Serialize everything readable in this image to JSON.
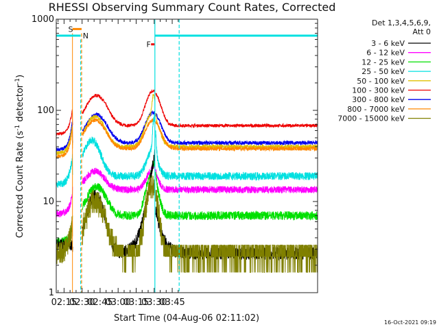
{
  "chart_data": {
    "type": "line",
    "title": "RHESSI Observing Summary Count Rates, Corrected",
    "xlabel": "Start Time (04-Aug-06 02:11:02)",
    "ylabel": "Corrected Count Rate (s",
    "ylabel_sup1": "-1",
    "ylabel_mid": " detector",
    "ylabel_sup2": "-1",
    "ylabel_end": ")",
    "y_scale": "log",
    "ylim": [
      1,
      1000
    ],
    "xlim_min": [
      8.5,
      226
    ],
    "y_ticks": [
      {
        "value": 1,
        "label": "1"
      },
      {
        "value": 10,
        "label": "10"
      },
      {
        "value": 100,
        "label": "100"
      },
      {
        "value": 1000,
        "label": "1000"
      }
    ],
    "x_ticks": [
      {
        "value": 15,
        "label": "02:15"
      },
      {
        "value": 30,
        "label": "02:30"
      },
      {
        "value": 45,
        "label": "02:45"
      },
      {
        "value": 60,
        "label": "03:00"
      },
      {
        "value": 75,
        "label": "03:15"
      },
      {
        "value": 90,
        "label": "03:30"
      },
      {
        "value": 105,
        "label": "03:45"
      }
    ],
    "legend": {
      "placement": "right",
      "header_lines": [
        "Det 1,3,4,5,6,9,",
        "Att 0"
      ]
    },
    "series": [
      {
        "name": "3 - 6 keV",
        "color": "#000000"
      },
      {
        "name": "6 - 12 keV",
        "color": "#ff00ff"
      },
      {
        "name": "12 - 25 keV",
        "color": "#00e000"
      },
      {
        "name": "25 - 50 keV",
        "color": "#00e0e0"
      },
      {
        "name": "50 - 100 keV",
        "color": "#e0c000"
      },
      {
        "name": "100 - 300 keV",
        "color": "#ee0000"
      },
      {
        "name": "300 - 800 keV",
        "color": "#0000ee"
      },
      {
        "name": "800 - 7000 keV",
        "color": "#ff8800"
      },
      {
        "name": "7000 - 15000 keV",
        "color": "#808000"
      }
    ],
    "annotations": [
      {
        "label": "S",
        "color": "#ff8800"
      },
      {
        "label": "N",
        "color": "#00e0e0"
      },
      {
        "label": "F",
        "color": "#ee0000"
      }
    ]
  },
  "timestamp": "16-Oct-2021 09:19"
}
